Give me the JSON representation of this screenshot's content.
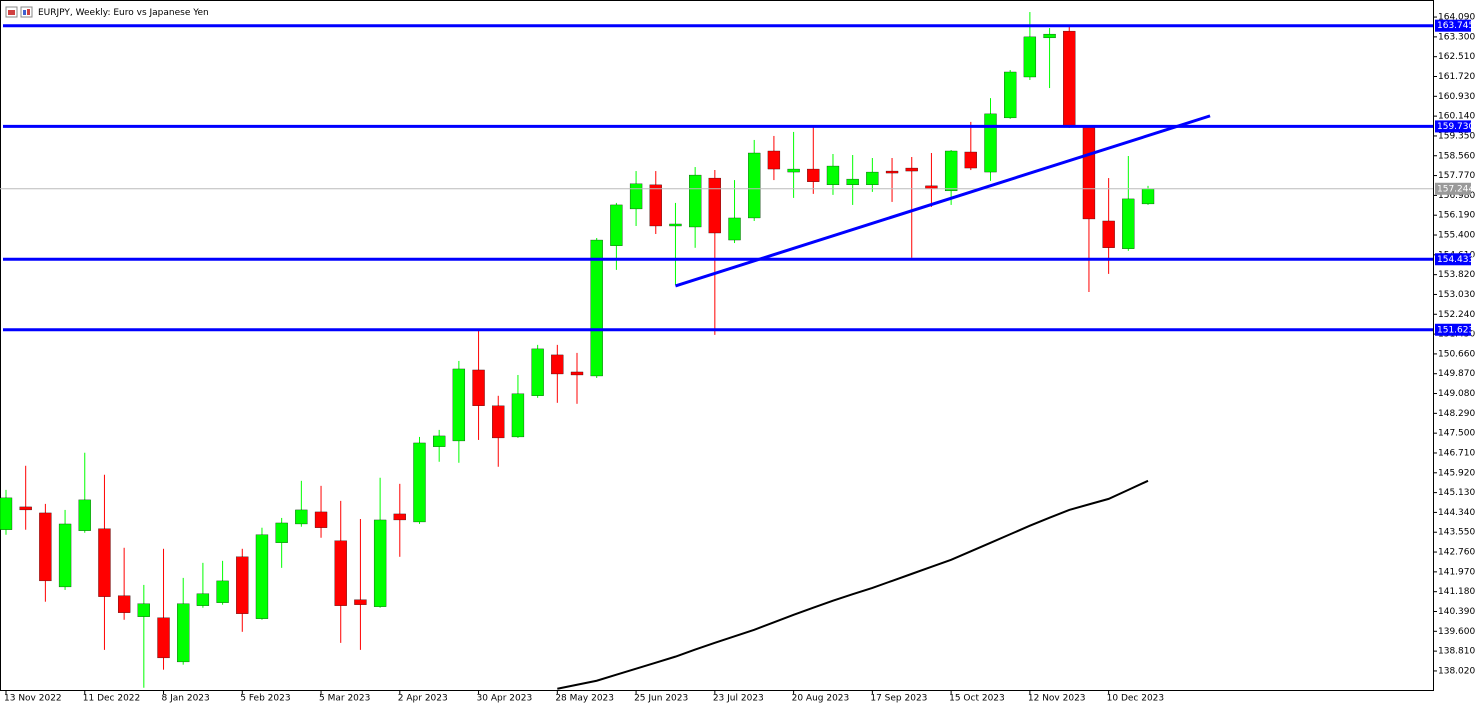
{
  "chart_data": {
    "type": "candlestick",
    "title": "EURJPY, Weekly:  Euro vs Japanese Yen",
    "categories": [
      "13 Nov 2022",
      null,
      null,
      null,
      "11 Dec 2022",
      null,
      null,
      null,
      "8 Jan 2023",
      null,
      null,
      null,
      "5 Feb 2023",
      null,
      null,
      null,
      "5 Mar 2023",
      null,
      null,
      null,
      "2 Apr 2023",
      null,
      null,
      null,
      "30 Apr 2023",
      null,
      null,
      null,
      "28 May 2023",
      null,
      null,
      null,
      "25 Jun 2023",
      null,
      null,
      null,
      "23 Jul 2023",
      null,
      null,
      null,
      "20 Aug 2023",
      null,
      null,
      null,
      "17 Sep 2023",
      null,
      null,
      null,
      "15 Oct 2023",
      null,
      null,
      null,
      "12 Nov 2023",
      null,
      null,
      null,
      "10 Dec 2023",
      null,
      null
    ],
    "open": [
      143.65,
      144.56,
      144.32,
      141.37,
      143.61,
      143.69,
      141.02,
      140.18,
      140.14,
      138.38,
      140.62,
      140.74,
      142.57,
      140.1,
      143.13,
      143.88,
      144.36,
      143.21,
      140.86,
      140.58,
      144.28,
      143.96,
      146.96,
      147.19,
      150.02,
      148.59,
      147.35,
      148.99,
      150.62,
      149.94,
      149.78,
      154.97,
      156.44,
      157.4,
      155.76,
      155.72,
      157.67,
      155.2,
      156.08,
      158.75,
      157.91,
      158.03,
      157.4,
      157.4,
      157.4,
      157.95,
      158.07,
      157.36,
      157.16,
      158.71,
      157.91,
      160.07,
      161.7,
      163.26,
      163.53,
      159.71,
      155.96,
      154.85,
      156.64
    ],
    "high": [
      145.24,
      146.2,
      144.68,
      144.44,
      146.72,
      145.84,
      142.93,
      141.45,
      142.89,
      141.73,
      142.33,
      142.41,
      142.89,
      143.73,
      144.12,
      145.6,
      145.4,
      144.8,
      144.08,
      145.72,
      145.48,
      147.35,
      147.63,
      150.38,
      151.62,
      148.99,
      149.82,
      151.02,
      151.02,
      150.7,
      155.28,
      156.68,
      157.95,
      157.95,
      156.68,
      158.11,
      157.99,
      157.59,
      159.19,
      159.35,
      159.51,
      159.71,
      158.63,
      158.59,
      158.47,
      158.47,
      158.51,
      158.67,
      158.79,
      159.91,
      160.86,
      161.98,
      164.29,
      163.65,
      163.69,
      159.75,
      157.67,
      158.55,
      157.36
    ],
    "low": [
      143.45,
      143.65,
      140.78,
      141.25,
      143.53,
      138.86,
      140.06,
      137.35,
      138.07,
      138.27,
      140.54,
      140.66,
      139.58,
      140.06,
      142.13,
      143.77,
      143.33,
      139.14,
      138.86,
      140.54,
      142.57,
      143.88,
      146.36,
      146.32,
      147.23,
      146.16,
      147.31,
      148.91,
      148.71,
      148.67,
      149.7,
      154.01,
      155.76,
      155.44,
      153.41,
      154.89,
      151.42,
      155.08,
      155.96,
      157.59,
      156.88,
      157.04,
      157.0,
      156.6,
      157.12,
      156.72,
      154.49,
      156.52,
      156.6,
      157.99,
      157.56,
      160.03,
      161.58,
      161.26,
      159.67,
      153.13,
      153.85,
      154.77,
      156.6
    ],
    "close": [
      144.92,
      144.44,
      141.61,
      143.88,
      144.84,
      140.98,
      140.34,
      140.7,
      138.54,
      140.7,
      141.1,
      141.61,
      140.3,
      143.45,
      143.92,
      144.44,
      143.73,
      140.62,
      140.66,
      144.04,
      144.04,
      147.11,
      147.39,
      150.06,
      148.59,
      147.31,
      149.07,
      150.86,
      149.86,
      149.82,
      155.2,
      156.6,
      157.44,
      155.76,
      155.84,
      157.79,
      155.48,
      156.08,
      158.67,
      158.03,
      158.03,
      157.52,
      158.15,
      157.63,
      157.91,
      157.87,
      157.95,
      157.24,
      158.75,
      158.07,
      160.23,
      161.9,
      163.3,
      163.41,
      159.71,
      156.04,
      154.89,
      156.84,
      157.244
    ],
    "up_color": "#00ff00",
    "down_color": "#ff0000",
    "moving_average": {
      "color": "#000000",
      "values": [
        null,
        null,
        null,
        null,
        null,
        null,
        null,
        null,
        null,
        null,
        null,
        null,
        null,
        null,
        null,
        null,
        null,
        null,
        null,
        null,
        null,
        null,
        null,
        null,
        null,
        null,
        null,
        null,
        137.31,
        137.47,
        137.63,
        137.87,
        138.11,
        138.35,
        138.59,
        138.87,
        139.14,
        139.4,
        139.66,
        139.96,
        140.26,
        140.54,
        140.82,
        141.08,
        141.33,
        141.61,
        141.89,
        142.17,
        142.45,
        142.79,
        143.13,
        143.47,
        143.81,
        144.13,
        144.44,
        144.66,
        144.88,
        145.24,
        145.6
      ]
    },
    "levels": [
      {
        "value": 163.745,
        "label": "163.745"
      },
      {
        "value": 159.73,
        "label": "159.730"
      },
      {
        "value": 154.433,
        "label": "154.433"
      },
      {
        "value": 151.623,
        "label": "151.623"
      }
    ],
    "level_color": "#0000ff",
    "current_price": {
      "value": 157.244,
      "label": "157.244"
    },
    "trend_line": {
      "color": "#0000ff",
      "x": [
        34,
        61.15
      ],
      "values": [
        153.37,
        160.15
      ]
    },
    "ylim": [
      137.26,
      164.77
    ],
    "yticks": [
      {
        "value": 164.09,
        "label": "164.090"
      },
      {
        "value": 163.3,
        "label": "163.300"
      },
      {
        "value": 162.51,
        "label": "162.510"
      },
      {
        "value": 161.72,
        "label": "161.720"
      },
      {
        "value": 160.93,
        "label": "160.930"
      },
      {
        "value": 160.14,
        "label": "160.140"
      },
      {
        "value": 159.35,
        "label": "159.350"
      },
      {
        "value": 158.56,
        "label": "158.560"
      },
      {
        "value": 157.77,
        "label": "157.770"
      },
      {
        "value": 156.98,
        "label": "156.980"
      },
      {
        "value": 156.19,
        "label": "156.190"
      },
      {
        "value": 155.4,
        "label": "155.400"
      },
      {
        "value": 154.61,
        "label": "154.610"
      },
      {
        "value": 153.82,
        "label": "153.820"
      },
      {
        "value": 153.03,
        "label": "153.030"
      },
      {
        "value": 152.24,
        "label": "152.240"
      },
      {
        "value": 151.45,
        "label": "151.450"
      },
      {
        "value": 150.66,
        "label": "150.660"
      },
      {
        "value": 149.87,
        "label": "149.870"
      },
      {
        "value": 149.08,
        "label": "149.080"
      },
      {
        "value": 148.29,
        "label": "148.290"
      },
      {
        "value": 147.5,
        "label": "147.500"
      },
      {
        "value": 146.71,
        "label": "146.710"
      },
      {
        "value": 145.92,
        "label": "145.920"
      },
      {
        "value": 145.13,
        "label": "145.130"
      },
      {
        "value": 144.34,
        "label": "144.340"
      },
      {
        "value": 143.55,
        "label": "143.550"
      },
      {
        "value": 142.76,
        "label": "142.760"
      },
      {
        "value": 141.97,
        "label": "141.970"
      },
      {
        "value": 141.18,
        "label": "141.180"
      },
      {
        "value": 140.39,
        "label": "140.390"
      },
      {
        "value": 139.6,
        "label": "139.600"
      },
      {
        "value": 138.81,
        "label": "138.810"
      },
      {
        "value": 138.02,
        "label": "138.020"
      }
    ]
  }
}
